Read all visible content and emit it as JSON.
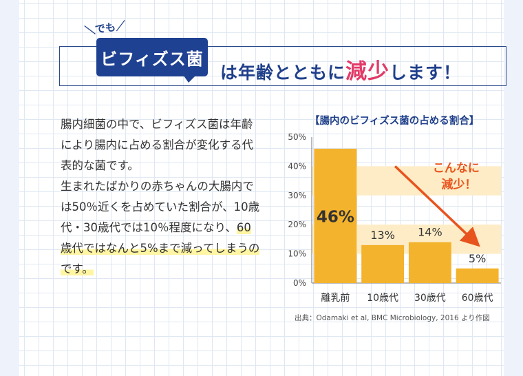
{
  "header": {
    "tag": "＼でも／",
    "badge": "ビフィズス菌",
    "headline_before": "は年齢とともに",
    "headline_highlight": "減少",
    "headline_after": "します！"
  },
  "body": {
    "paragraph1": "腸内細菌の中で、ビフィズス菌は年齢により腸内に占める割合が変化する代表的な菌です。",
    "paragraph2_start": "生まれたばかりの赤ちゃんの大腸内では50％近くを占めていた割合が、10歳代・30歳代では10％程度になり、",
    "paragraph2_marked": "60歳代ではなんと5%まで減ってしまうのです。"
  },
  "chart_data": {
    "type": "bar",
    "title": "【腸内のビフィズス菌の占める割合】",
    "categories": [
      "離乳前",
      "10歳代",
      "30歳代",
      "60歳代"
    ],
    "values": [
      46,
      13,
      14,
      5
    ],
    "value_labels": [
      "46%",
      "13%",
      "14%",
      "5%"
    ],
    "ylim": [
      0,
      50
    ],
    "yticks": [
      0,
      10,
      20,
      30,
      40,
      50
    ],
    "ytick_labels": [
      "0%",
      "10%",
      "20%",
      "30%",
      "40%",
      "50%"
    ],
    "annotation_line1": "こんなに",
    "annotation_line2": "減少！",
    "source": "出典：Odamaki et al, BMC Microbiology, 2016 より作図"
  },
  "colors": {
    "navy": "#1f4191",
    "bar": "#f4b32c",
    "band": "#fdecc6",
    "arrow": "#e8541e",
    "highlight": "#e33a68"
  }
}
